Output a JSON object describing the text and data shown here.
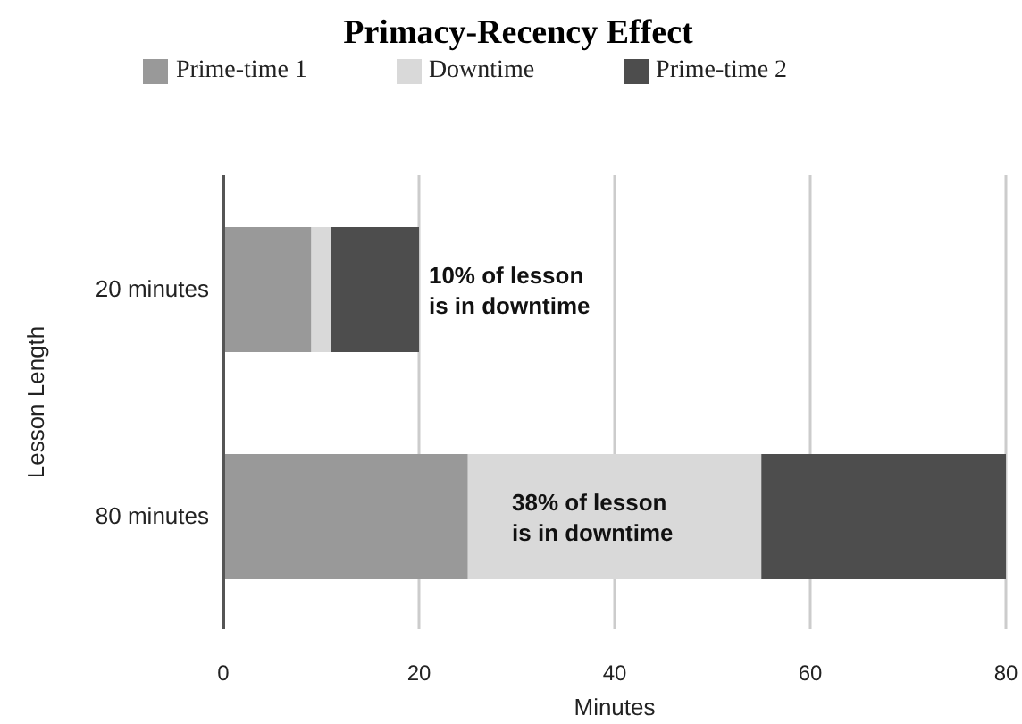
{
  "chart_data": {
    "type": "bar",
    "orientation": "horizontal",
    "stacked": true,
    "title": "Primacy-Recency Effect",
    "xlabel": "Minutes",
    "ylabel": "Lesson Length",
    "categories": [
      "20 minutes",
      "80 minutes"
    ],
    "series": [
      {
        "name": "Prime-time 1",
        "color": "#999999",
        "values": [
          9,
          25
        ]
      },
      {
        "name": "Downtime",
        "color": "#d9d9d9",
        "values": [
          2,
          30
        ]
      },
      {
        "name": "Prime-time 2",
        "color": "#4d4d4d",
        "values": [
          9,
          25
        ]
      }
    ],
    "xlim": [
      0,
      80
    ],
    "xticks": [
      0,
      20,
      40,
      60,
      80
    ],
    "grid": "x",
    "legend": "top",
    "annotations": [
      "10% of lesson is in downtime",
      "38% of lesson is in downtime"
    ]
  }
}
